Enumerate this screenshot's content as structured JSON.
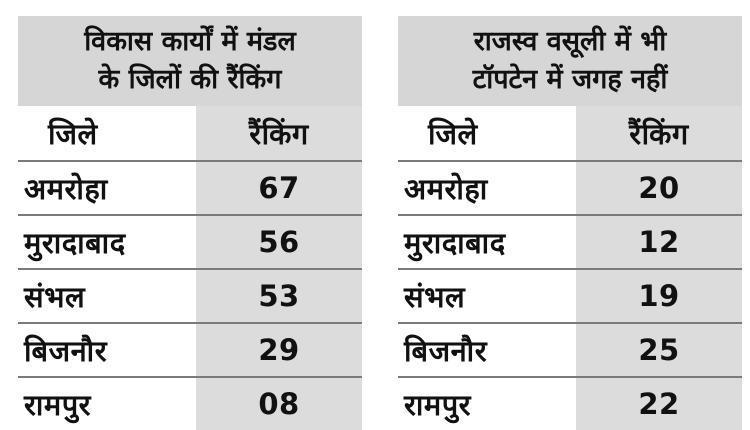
{
  "left_table": {
    "title_line1": "विकास कार्यों में मंडल",
    "title_line2": "के जिलों की रैंकिंग",
    "col_district": "जिले",
    "col_rank": "रैंकिंग",
    "rows": [
      {
        "district": "अमरोहा",
        "rank": "67"
      },
      {
        "district": "मुरादाबाद",
        "rank": "56"
      },
      {
        "district": "संभल",
        "rank": "53"
      },
      {
        "district": "बिजनौर",
        "rank": "29"
      },
      {
        "district": "रामपुर",
        "rank": "08"
      }
    ]
  },
  "right_table": {
    "title_line1": "राजस्व वसूली में भी",
    "title_line2": "टॉपटेन में जगह नहीं",
    "col_district": "जिले",
    "col_rank": "रैंकिंग",
    "rows": [
      {
        "district": "अमरोहा",
        "rank": "20"
      },
      {
        "district": "मुरादाबाद",
        "rank": "12"
      },
      {
        "district": "संभल",
        "rank": "19"
      },
      {
        "district": "बिजनौर",
        "rank": "25"
      },
      {
        "district": "रामपुर",
        "rank": "22"
      }
    ]
  }
}
